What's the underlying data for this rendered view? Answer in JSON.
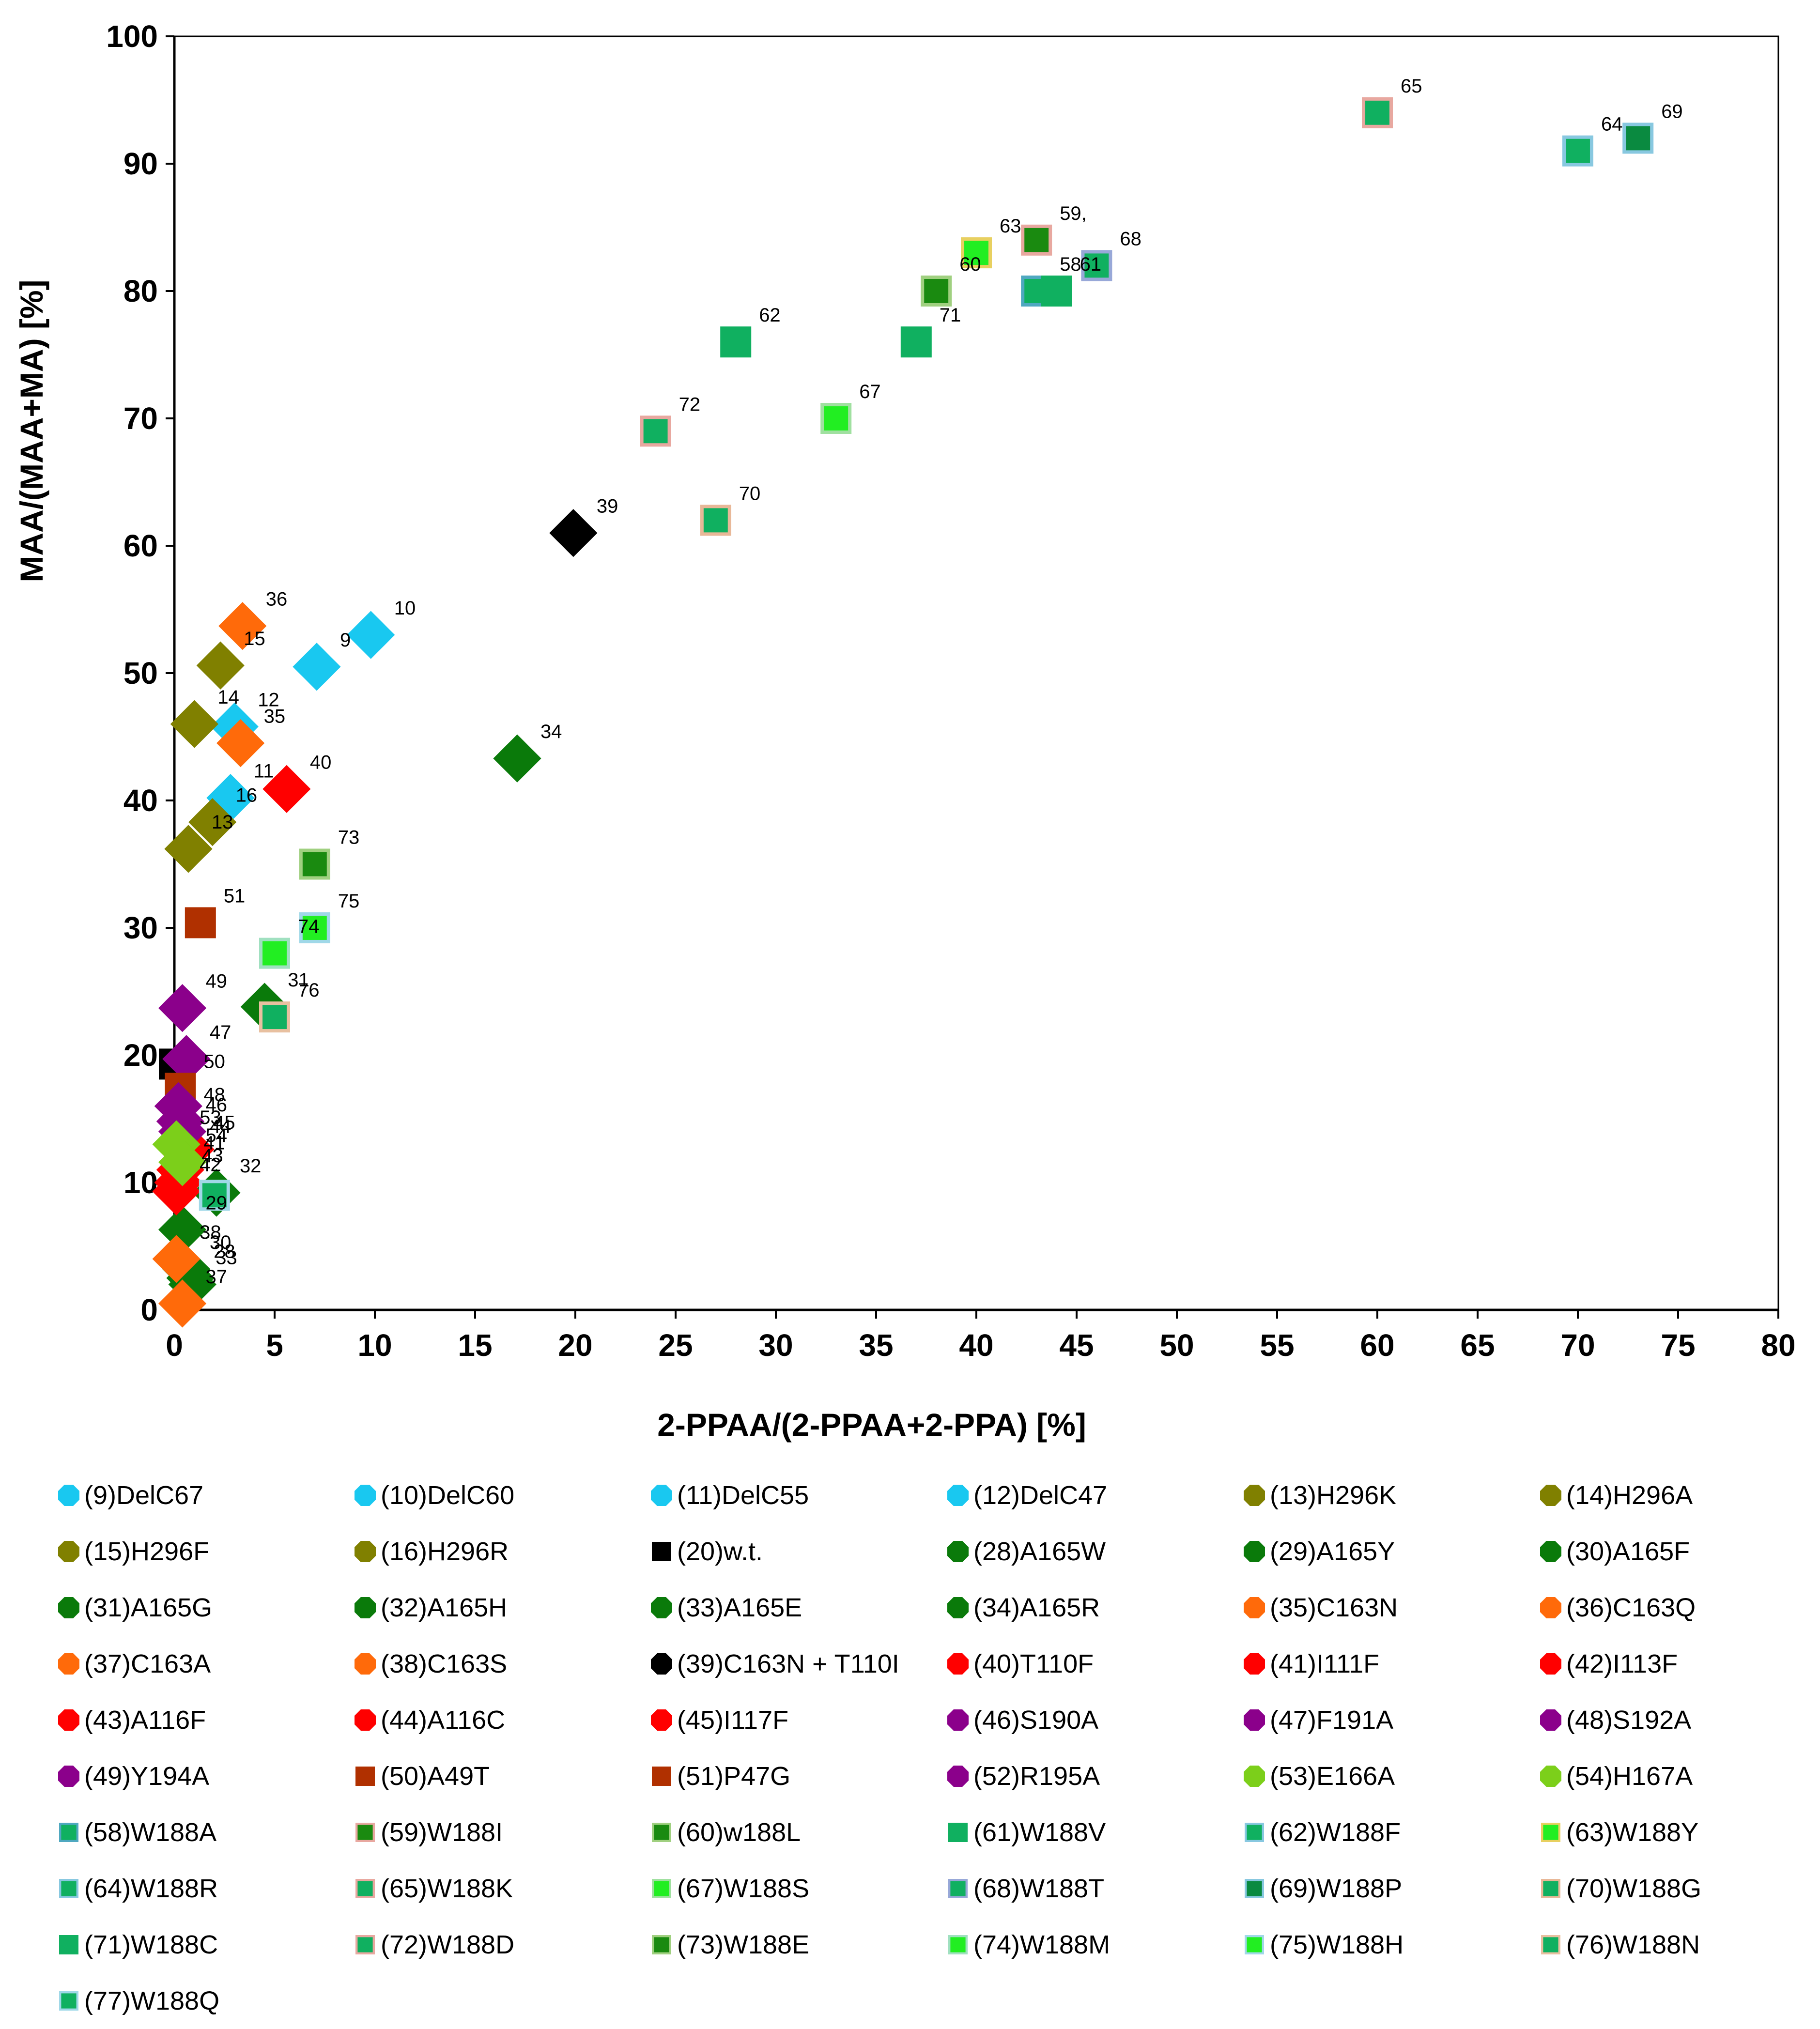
{
  "chart_data": {
    "type": "scatter",
    "title": "",
    "xlabel": "2-PPAA/(2-PPAA+2-PPA) [%]",
    "ylabel": "MAA/(MAA+MA) [%]",
    "xlim": [
      0,
      80
    ],
    "ylim": [
      0,
      100
    ],
    "xticks": [
      "0",
      "5",
      "10",
      "15",
      "20",
      "25",
      "30",
      "35",
      "40",
      "45",
      "50",
      "55",
      "60",
      "65",
      "70",
      "75",
      "80"
    ],
    "yticks": [
      "0",
      "10",
      "20",
      "30",
      "40",
      "50",
      "60",
      "70",
      "80",
      "90",
      "100"
    ],
    "grid": false,
    "points": [
      {
        "id": "9",
        "label": "9",
        "x": 7.1,
        "y": 50.5,
        "marker": "diamond",
        "color": "#19C8F0",
        "border": ""
      },
      {
        "id": "10",
        "label": "10",
        "x": 9.8,
        "y": 53,
        "marker": "diamond",
        "color": "#19C8F0",
        "border": ""
      },
      {
        "id": "11",
        "label": "11",
        "x": 2.8,
        "y": 40.2,
        "marker": "diamond",
        "color": "#19C8F0",
        "border": ""
      },
      {
        "id": "12",
        "label": "12",
        "x": 3,
        "y": 45.8,
        "marker": "diamond",
        "color": "#19C8F0",
        "border": ""
      },
      {
        "id": "13",
        "label": "13",
        "x": 0.7,
        "y": 36.2,
        "marker": "diamond",
        "color": "#808000",
        "border": ""
      },
      {
        "id": "14",
        "label": "14",
        "x": 1,
        "y": 46,
        "marker": "diamond",
        "color": "#808000",
        "border": ""
      },
      {
        "id": "15",
        "label": "15",
        "x": 2.3,
        "y": 50.6,
        "marker": "diamond",
        "color": "#808000",
        "border": ""
      },
      {
        "id": "16",
        "label": "16",
        "x": 1.9,
        "y": 38.3,
        "marker": "diamond",
        "color": "#808000",
        "border": ""
      },
      {
        "id": "20",
        "label": "",
        "x": 0,
        "y": 19.3,
        "marker": "square",
        "color": "#000000",
        "border": ""
      },
      {
        "id": "28",
        "label": "28",
        "x": 0.8,
        "y": 2.5,
        "marker": "diamond",
        "color": "#0A7A0A",
        "border": ""
      },
      {
        "id": "29",
        "label": "29",
        "x": 0.4,
        "y": 6.3,
        "marker": "diamond",
        "color": "#0A7A0A",
        "border": ""
      },
      {
        "id": "30",
        "label": "30",
        "x": 0.6,
        "y": 3.2,
        "marker": "diamond",
        "color": "#0A7A0A",
        "border": ""
      },
      {
        "id": "31",
        "label": "31",
        "x": 4.5,
        "y": 23.8,
        "marker": "diamond",
        "color": "#0A7A0A",
        "border": ""
      },
      {
        "id": "32",
        "label": "32",
        "x": 2.1,
        "y": 9.2,
        "marker": "diamond",
        "color": "#0A7A0A",
        "border": ""
      },
      {
        "id": "33",
        "label": "33",
        "x": 0.9,
        "y": 2,
        "marker": "diamond",
        "color": "#0A7A0A",
        "border": ""
      },
      {
        "id": "34",
        "label": "34",
        "x": 17.1,
        "y": 43.3,
        "marker": "diamond",
        "color": "#0A7A0A",
        "border": ""
      },
      {
        "id": "35",
        "label": "35",
        "x": 3.3,
        "y": 44.5,
        "marker": "diamond",
        "color": "#FF6A0A",
        "border": ""
      },
      {
        "id": "36",
        "label": "36",
        "x": 3.4,
        "y": 53.7,
        "marker": "diamond",
        "color": "#FF6A0A",
        "border": ""
      },
      {
        "id": "37",
        "label": "37",
        "x": 0.4,
        "y": 0.5,
        "marker": "diamond",
        "color": "#FF6A0A",
        "border": ""
      },
      {
        "id": "38",
        "label": "38",
        "x": 0.1,
        "y": 4,
        "marker": "diamond",
        "color": "#FF6A0A",
        "border": ""
      },
      {
        "id": "39",
        "label": "39",
        "x": 19.9,
        "y": 61,
        "marker": "diamond",
        "color": "#000000",
        "border": ""
      },
      {
        "id": "40",
        "label": "40",
        "x": 5.6,
        "y": 40.9,
        "marker": "diamond",
        "color": "#FF0000",
        "border": ""
      },
      {
        "id": "41",
        "label": "41",
        "x": 0.3,
        "y": 11,
        "marker": "diamond",
        "color": "#FF0000",
        "border": ""
      },
      {
        "id": "42",
        "label": "42",
        "x": 0.1,
        "y": 9.3,
        "marker": "diamond",
        "color": "#FF0000",
        "border": ""
      },
      {
        "id": "43",
        "label": "43",
        "x": 0.2,
        "y": 10,
        "marker": "diamond",
        "color": "#FF0000",
        "border": ""
      },
      {
        "id": "44",
        "label": "44",
        "x": 0.6,
        "y": 12.3,
        "marker": "diamond",
        "color": "#FF0000",
        "border": ""
      },
      {
        "id": "45",
        "label": "45",
        "x": 0.8,
        "y": 12.6,
        "marker": "diamond",
        "color": "#FF0000",
        "border": ""
      },
      {
        "id": "46",
        "label": "46",
        "x": 0.4,
        "y": 14,
        "marker": "diamond",
        "color": "#8B008B",
        "border": ""
      },
      {
        "id": "47",
        "label": "47",
        "x": 0.6,
        "y": 19.7,
        "marker": "diamond",
        "color": "#8B008B",
        "border": ""
      },
      {
        "id": "48",
        "label": "48",
        "x": 0.3,
        "y": 14.8,
        "marker": "diamond",
        "color": "#8B008B",
        "border": ""
      },
      {
        "id": "49",
        "label": "49",
        "x": 0.4,
        "y": 23.7,
        "marker": "diamond",
        "color": "#8B008B",
        "border": ""
      },
      {
        "id": "50",
        "label": "50",
        "x": 0.3,
        "y": 17.4,
        "marker": "square",
        "color": "#B03000",
        "border": ""
      },
      {
        "id": "51",
        "label": "51",
        "x": 1.3,
        "y": 30.4,
        "marker": "square",
        "color": "#B03000",
        "border": ""
      },
      {
        "id": "52",
        "label": "",
        "x": 0.2,
        "y": 16,
        "marker": "diamond",
        "color": "#8B008B",
        "border": ""
      },
      {
        "id": "53",
        "label": "53",
        "x": 0.1,
        "y": 13,
        "marker": "diamond",
        "color": "#7CCF1A",
        "border": ""
      },
      {
        "id": "54",
        "label": "54",
        "x": 0.4,
        "y": 11.6,
        "marker": "diamond",
        "color": "#7CCF1A",
        "border": ""
      },
      {
        "id": "58",
        "label": "58",
        "x": 43,
        "y": 80,
        "marker": "square",
        "color": "#10B060",
        "border": "#4FA8C0"
      },
      {
        "id": "59",
        "label": "59,",
        "x": 43,
        "y": 84,
        "marker": "square",
        "color": "#1A8A10",
        "border": "#E8A8A0"
      },
      {
        "id": "60",
        "label": "60",
        "x": 38,
        "y": 80,
        "marker": "square",
        "color": "#1A8A10",
        "border": "#A0D080"
      },
      {
        "id": "61",
        "label": "61",
        "x": 44,
        "y": 80,
        "marker": "square",
        "color": "#10B060",
        "border": ""
      },
      {
        "id": "62",
        "label": "62",
        "x": 28,
        "y": 76,
        "marker": "square",
        "color": "#10B060",
        "border": ""
      },
      {
        "id": "63",
        "label": "63",
        "x": 40,
        "y": 83,
        "marker": "square",
        "color": "#22EE22",
        "border": "#E8D060"
      },
      {
        "id": "64",
        "label": "64",
        "x": 70,
        "y": 91,
        "marker": "square",
        "color": "#10B060",
        "border": "#88C8E0"
      },
      {
        "id": "65",
        "label": "65",
        "x": 60,
        "y": 94,
        "marker": "square",
        "color": "#10B060",
        "border": "#E8A8A0"
      },
      {
        "id": "67",
        "label": "67",
        "x": 33,
        "y": 70,
        "marker": "square",
        "color": "#22EE22",
        "border": "#A0E0A0"
      },
      {
        "id": "68",
        "label": "68",
        "x": 46,
        "y": 82,
        "marker": "square",
        "color": "#10B060",
        "border": "#98A8D8"
      },
      {
        "id": "69",
        "label": "69",
        "x": 73,
        "y": 92,
        "marker": "square",
        "color": "#0A8A40",
        "border": "#88C8E0"
      },
      {
        "id": "70",
        "label": "70",
        "x": 27,
        "y": 62,
        "marker": "square",
        "color": "#10B060",
        "border": "#E8B898"
      },
      {
        "id": "71",
        "label": "71",
        "x": 37,
        "y": 76,
        "marker": "square",
        "color": "#10B060",
        "border": ""
      },
      {
        "id": "72",
        "label": "72",
        "x": 24,
        "y": 69,
        "marker": "square",
        "color": "#10B060",
        "border": "#E8A8A0"
      },
      {
        "id": "73",
        "label": "73",
        "x": 7,
        "y": 35,
        "marker": "square",
        "color": "#1A8A10",
        "border": "#A0D080"
      },
      {
        "id": "74",
        "label": "74",
        "x": 5,
        "y": 28,
        "marker": "square",
        "color": "#22EE22",
        "border": "#A0E0C0"
      },
      {
        "id": "75",
        "label": "75",
        "x": 7,
        "y": 30,
        "marker": "square",
        "color": "#22EE22",
        "border": "#A0D8E8"
      },
      {
        "id": "76",
        "label": "76",
        "x": 5,
        "y": 23,
        "marker": "square",
        "color": "#10B060",
        "border": "#E8C0A0"
      },
      {
        "id": "77",
        "label": "",
        "x": 2,
        "y": 9,
        "marker": "square",
        "color": "#10B060",
        "border": "#A0D8E8"
      }
    ],
    "legend": [
      {
        "text": "(9)DelC67",
        "marker": "diamond",
        "color": "#19C8F0",
        "border": ""
      },
      {
        "text": "(10)DelC60",
        "marker": "diamond",
        "color": "#19C8F0",
        "border": ""
      },
      {
        "text": "(11)DelC55",
        "marker": "diamond",
        "color": "#19C8F0",
        "border": ""
      },
      {
        "text": "(12)DelC47",
        "marker": "diamond",
        "color": "#19C8F0",
        "border": ""
      },
      {
        "text": "(13)H296K",
        "marker": "diamond",
        "color": "#808000",
        "border": ""
      },
      {
        "text": "(14)H296A",
        "marker": "diamond",
        "color": "#808000",
        "border": ""
      },
      {
        "text": "(15)H296F",
        "marker": "diamond",
        "color": "#808000",
        "border": ""
      },
      {
        "text": "(16)H296R",
        "marker": "diamond",
        "color": "#808000",
        "border": ""
      },
      {
        "text": "(20)w.t.",
        "marker": "square",
        "color": "#000000",
        "border": ""
      },
      {
        "text": "(28)A165W",
        "marker": "diamond",
        "color": "#0A7A0A",
        "border": ""
      },
      {
        "text": "(29)A165Y",
        "marker": "diamond",
        "color": "#0A7A0A",
        "border": ""
      },
      {
        "text": "(30)A165F",
        "marker": "diamond",
        "color": "#0A7A0A",
        "border": ""
      },
      {
        "text": "(31)A165G",
        "marker": "diamond",
        "color": "#0A7A0A",
        "border": ""
      },
      {
        "text": "(32)A165H",
        "marker": "diamond",
        "color": "#0A7A0A",
        "border": ""
      },
      {
        "text": "(33)A165E",
        "marker": "diamond",
        "color": "#0A7A0A",
        "border": ""
      },
      {
        "text": "(34)A165R",
        "marker": "diamond",
        "color": "#0A7A0A",
        "border": ""
      },
      {
        "text": "(35)C163N",
        "marker": "diamond",
        "color": "#FF6A0A",
        "border": ""
      },
      {
        "text": "(36)C163Q",
        "marker": "diamond",
        "color": "#FF6A0A",
        "border": ""
      },
      {
        "text": "(37)C163A",
        "marker": "diamond",
        "color": "#FF6A0A",
        "border": ""
      },
      {
        "text": "(38)C163S",
        "marker": "diamond",
        "color": "#FF6A0A",
        "border": ""
      },
      {
        "text": "(39)C163N + T110I",
        "marker": "diamond",
        "color": "#000000",
        "border": ""
      },
      {
        "text": "(40)T110F",
        "marker": "diamond",
        "color": "#FF0000",
        "border": ""
      },
      {
        "text": "(41)I111F",
        "marker": "diamond",
        "color": "#FF0000",
        "border": ""
      },
      {
        "text": "(42)I113F",
        "marker": "diamond",
        "color": "#FF0000",
        "border": ""
      },
      {
        "text": "(43)A116F",
        "marker": "diamond",
        "color": "#FF0000",
        "border": ""
      },
      {
        "text": "(44)A116C",
        "marker": "diamond",
        "color": "#FF0000",
        "border": ""
      },
      {
        "text": "(45)I117F",
        "marker": "diamond",
        "color": "#FF0000",
        "border": ""
      },
      {
        "text": "(46)S190A",
        "marker": "diamond",
        "color": "#8B008B",
        "border": ""
      },
      {
        "text": "(47)F191A",
        "marker": "diamond",
        "color": "#8B008B",
        "border": ""
      },
      {
        "text": "(48)S192A",
        "marker": "diamond",
        "color": "#8B008B",
        "border": ""
      },
      {
        "text": "(49)Y194A",
        "marker": "diamond",
        "color": "#8B008B",
        "border": ""
      },
      {
        "text": "(50)A49T",
        "marker": "square",
        "color": "#B03000",
        "border": ""
      },
      {
        "text": "(51)P47G",
        "marker": "square",
        "color": "#B03000",
        "border": ""
      },
      {
        "text": "(52)R195A",
        "marker": "diamond",
        "color": "#8B008B",
        "border": ""
      },
      {
        "text": "(53)E166A",
        "marker": "diamond",
        "color": "#7CCF1A",
        "border": ""
      },
      {
        "text": "(54)H167A",
        "marker": "diamond",
        "color": "#7CCF1A",
        "border": ""
      },
      {
        "text": "(58)W188A",
        "marker": "square",
        "color": "#10B060",
        "border": "#4FA8C0"
      },
      {
        "text": "(59)W188I",
        "marker": "square",
        "color": "#1A8A10",
        "border": "#E8A8A0"
      },
      {
        "text": "(60)w188L",
        "marker": "square",
        "color": "#1A8A10",
        "border": "#A0D080"
      },
      {
        "text": "(61)W188V",
        "marker": "square",
        "color": "#10B060",
        "border": ""
      },
      {
        "text": "(62)W188F",
        "marker": "square",
        "color": "#10B060",
        "border": "#88C8E0"
      },
      {
        "text": "(63)W188Y",
        "marker": "square",
        "color": "#22EE22",
        "border": "#E8D060"
      },
      {
        "text": "(64)W188R",
        "marker": "square",
        "color": "#10B060",
        "border": "#88C8E0"
      },
      {
        "text": "(65)W188K",
        "marker": "square",
        "color": "#10B060",
        "border": "#E8A8A0"
      },
      {
        "text": "(67)W188S",
        "marker": "square",
        "color": "#22EE22",
        "border": "#A0E0A0"
      },
      {
        "text": "(68)W188T",
        "marker": "square",
        "color": "#10B060",
        "border": "#98A8D8"
      },
      {
        "text": "(69)W188P",
        "marker": "square",
        "color": "#0A8A40",
        "border": "#88C8E0"
      },
      {
        "text": "(70)W188G",
        "marker": "square",
        "color": "#10B060",
        "border": "#E8B898"
      },
      {
        "text": "(71)W188C",
        "marker": "square",
        "color": "#10B060",
        "border": ""
      },
      {
        "text": "(72)W188D",
        "marker": "square",
        "color": "#10B060",
        "border": "#E8A8A0"
      },
      {
        "text": "(73)W188E",
        "marker": "square",
        "color": "#1A8A10",
        "border": "#A0D080"
      },
      {
        "text": "(74)W188M",
        "marker": "square",
        "color": "#22EE22",
        "border": "#A0E0C0"
      },
      {
        "text": "(75)W188H",
        "marker": "square",
        "color": "#22EE22",
        "border": "#A0D8E8"
      },
      {
        "text": "(76)W188N",
        "marker": "square",
        "color": "#10B060",
        "border": "#E8C0A0"
      },
      {
        "text": "(77)W188Q",
        "marker": "square",
        "color": "#10B060",
        "border": "#A0D8E8"
      }
    ]
  }
}
